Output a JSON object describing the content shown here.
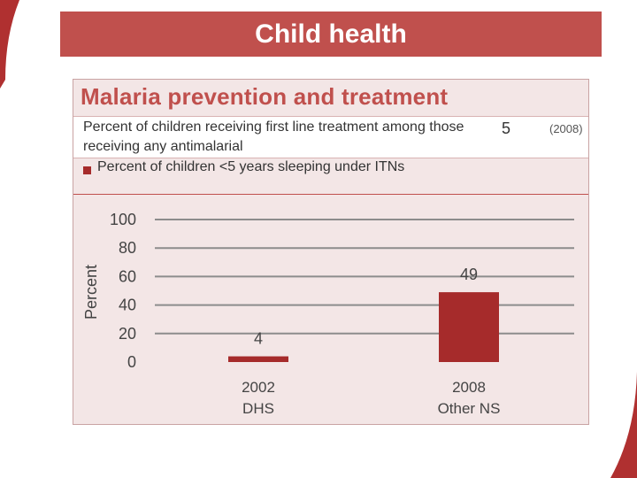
{
  "header": {
    "title": "Child health"
  },
  "panel": {
    "title": "Malaria prevention and treatment",
    "indicator": {
      "text": "Percent of children receiving first line treatment among those receiving any antimalarial",
      "value": "5",
      "year": "(2008)"
    },
    "legend_label": "Percent of children <5 years sleeping under ITNs"
  },
  "colors": {
    "banner": "#c0504d",
    "bar": "#a62b2b",
    "panel_bg": "#f3e6e6",
    "title_red": "#c0504d"
  },
  "chart_data": {
    "type": "bar",
    "title": "Percent of children <5 years sleeping under ITNs",
    "ylabel": "Percent",
    "xlabel": "",
    "ylim": [
      0,
      100
    ],
    "yticks": [
      100,
      80,
      60,
      40,
      20,
      0
    ],
    "grid": true,
    "categories": [
      {
        "year": "2002",
        "source": "DHS"
      },
      {
        "year": "2008",
        "source": "Other NS"
      }
    ],
    "values": [
      4,
      49
    ],
    "data_labels": [
      "4",
      "49"
    ]
  }
}
